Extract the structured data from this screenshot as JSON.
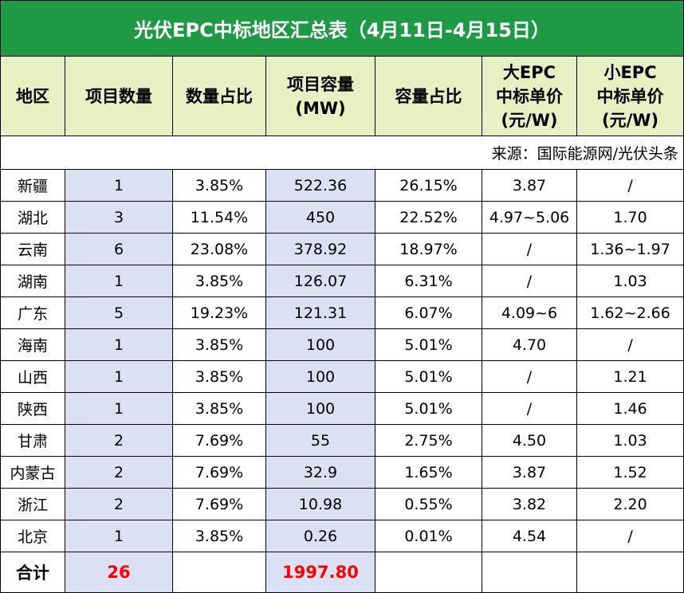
{
  "title": "光伏EPC中标地区汇总表（4月11日-4月15日）",
  "headers": {
    "region": "地区",
    "count": "项目数量",
    "count_share": "数量占比",
    "capacity_line1": "项目容量",
    "capacity_line2": "(MW)",
    "capacity_share": "容量占比",
    "big_line1": "大EPC",
    "big_line2": "中标单价",
    "big_line3": "(元/W)",
    "small_line1": "小EPC",
    "small_line2": "中标单价",
    "small_line3": "(元/W)"
  },
  "source": "来源：国际能源网/光伏头条",
  "rows": [
    {
      "region": "新疆",
      "count": "1",
      "count_share": "3.85%",
      "capacity": "522.36",
      "capacity_share": "26.15%",
      "big": "3.87",
      "small": "/"
    },
    {
      "region": "湖北",
      "count": "3",
      "count_share": "11.54%",
      "capacity": "450",
      "capacity_share": "22.52%",
      "big": "4.97~5.06",
      "small": "1.70"
    },
    {
      "region": "云南",
      "count": "6",
      "count_share": "23.08%",
      "capacity": "378.92",
      "capacity_share": "18.97%",
      "big": "/",
      "small": "1.36~1.97"
    },
    {
      "region": "湖南",
      "count": "1",
      "count_share": "3.85%",
      "capacity": "126.07",
      "capacity_share": "6.31%",
      "big": "/",
      "small": "1.03"
    },
    {
      "region": "广东",
      "count": "5",
      "count_share": "19.23%",
      "capacity": "121.31",
      "capacity_share": "6.07%",
      "big": "4.09~6",
      "small": "1.62~2.66"
    },
    {
      "region": "海南",
      "count": "1",
      "count_share": "3.85%",
      "capacity": "100",
      "capacity_share": "5.01%",
      "big": "4.70",
      "small": "/"
    },
    {
      "region": "山西",
      "count": "1",
      "count_share": "3.85%",
      "capacity": "100",
      "capacity_share": "5.01%",
      "big": "/",
      "small": "1.21"
    },
    {
      "region": "陕西",
      "count": "1",
      "count_share": "3.85%",
      "capacity": "100",
      "capacity_share": "5.01%",
      "big": "/",
      "small": "1.46"
    },
    {
      "region": "甘肃",
      "count": "2",
      "count_share": "7.69%",
      "capacity": "55",
      "capacity_share": "2.75%",
      "big": "4.50",
      "small": "1.03"
    },
    {
      "region": "内蒙古",
      "count": "2",
      "count_share": "7.69%",
      "capacity": "32.9",
      "capacity_share": "1.65%",
      "big": "3.87",
      "small": "1.52"
    },
    {
      "region": "浙江",
      "count": "2",
      "count_share": "7.69%",
      "capacity": "10.98",
      "capacity_share": "0.55%",
      "big": "3.82",
      "small": "2.20"
    },
    {
      "region": "北京",
      "count": "1",
      "count_share": "3.85%",
      "capacity": "0.26",
      "capacity_share": "0.01%",
      "big": "4.54",
      "small": "/"
    }
  ],
  "total": {
    "label": "合计",
    "count": "26",
    "capacity": "1997.80"
  },
  "colors": {
    "title_bg": "#1e9a45",
    "header_bg": "#e7f0c3",
    "shade_bg": "#d9e1f2",
    "total_accent": "#ff0000"
  }
}
